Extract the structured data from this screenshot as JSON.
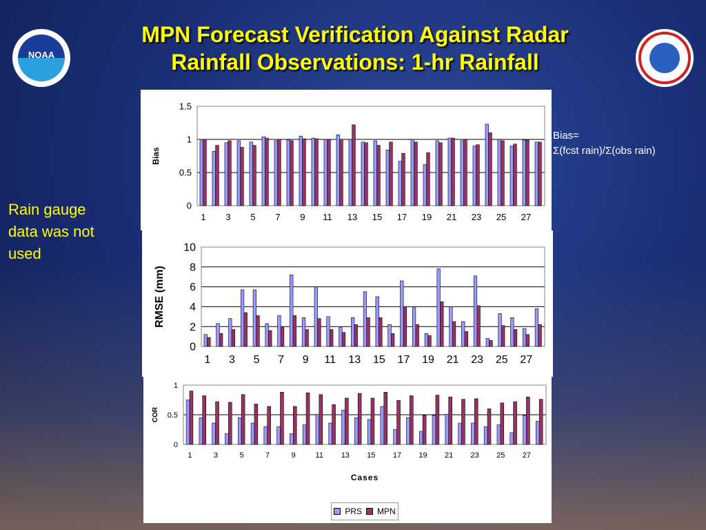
{
  "title_line1": "MPN Forecast Verification Against Radar",
  "title_line2": "Rainfall Observations: 1-hr Rainfall",
  "logo_left": "NOAA",
  "side_note": [
    "Rain gauge",
    "data was not",
    "used"
  ],
  "bias_note": [
    "Bias=",
    "Σ(fcst rain)/Σ(obs rain)"
  ],
  "colors": {
    "prs": "#9999ff",
    "mpn": "#993366",
    "title": "#ffff00"
  },
  "chart_data": [
    {
      "type": "bar",
      "ylabel": "Bias",
      "xlabel": "",
      "ylim": [
        0,
        1.5
      ],
      "yticks": [
        "0",
        "0.5",
        "1",
        "1.5"
      ],
      "x_tick_labels": [
        "1",
        "3",
        "5",
        "7",
        "9",
        "11",
        "13",
        "15",
        "17",
        "19",
        "21",
        "23",
        "25",
        "27"
      ],
      "categories": [
        1,
        2,
        3,
        4,
        5,
        6,
        7,
        8,
        9,
        10,
        11,
        12,
        13,
        14,
        15,
        16,
        17,
        18,
        19,
        20,
        21,
        22,
        23,
        24,
        25,
        26,
        27,
        28
      ],
      "series": [
        {
          "name": "PRS",
          "values": [
            0.98,
            0.82,
            0.95,
            0.98,
            0.96,
            1.04,
            0.98,
            0.99,
            1.05,
            1.02,
            1.0,
            1.07,
            1.0,
            0.96,
            0.98,
            0.84,
            0.67,
            1.0,
            0.62,
            0.98,
            1.02,
            0.98,
            0.9,
            1.23,
            1.0,
            0.9,
            0.99,
            0.96
          ]
        },
        {
          "name": "MPN",
          "values": [
            1.0,
            0.91,
            0.98,
            0.88,
            0.91,
            1.02,
            1.0,
            0.98,
            1.01,
            1.01,
            1.0,
            1.0,
            1.22,
            0.95,
            0.91,
            0.96,
            0.79,
            0.96,
            0.8,
            0.95,
            1.02,
            1.0,
            0.92,
            1.1,
            0.98,
            0.93,
            0.99,
            0.96
          ]
        }
      ]
    },
    {
      "type": "bar",
      "ylabel": "RMSE (mm)",
      "xlabel": "",
      "ylim": [
        0,
        10
      ],
      "yticks": [
        "0",
        "2",
        "4",
        "6",
        "8",
        "10"
      ],
      "x_tick_labels": [
        "1",
        "3",
        "5",
        "7",
        "9",
        "11",
        "13",
        "15",
        "17",
        "19",
        "21",
        "23",
        "25",
        "27"
      ],
      "categories": [
        1,
        2,
        3,
        4,
        5,
        6,
        7,
        8,
        9,
        10,
        11,
        12,
        13,
        14,
        15,
        16,
        17,
        18,
        19,
        20,
        21,
        22,
        23,
        24,
        25,
        26,
        27,
        28
      ],
      "series": [
        {
          "name": "PRS",
          "values": [
            1.2,
            2.3,
            2.8,
            5.7,
            5.7,
            2.3,
            3.1,
            7.2,
            2.9,
            6.0,
            3.0,
            1.9,
            2.9,
            5.5,
            5.0,
            2.2,
            6.6,
            3.9,
            1.3,
            7.8,
            4.0,
            2.5,
            7.1,
            0.8,
            3.3,
            2.9,
            1.8,
            3.8
          ]
        },
        {
          "name": "MPN",
          "values": [
            0.9,
            1.3,
            1.7,
            3.4,
            3.1,
            1.6,
            2.0,
            3.1,
            1.7,
            2.8,
            1.7,
            1.4,
            2.2,
            2.9,
            2.9,
            1.3,
            4.0,
            2.2,
            1.1,
            4.5,
            2.5,
            1.5,
            4.1,
            0.6,
            2.1,
            1.7,
            1.2,
            2.2
          ]
        }
      ]
    },
    {
      "type": "bar",
      "ylabel": "COR",
      "xlabel": "Cases",
      "ylim": [
        0,
        1
      ],
      "yticks": [
        "0",
        "0.5",
        "1"
      ],
      "x_tick_labels": [
        "1",
        "3",
        "5",
        "7",
        "9",
        "11",
        "13",
        "15",
        "17",
        "19",
        "21",
        "23",
        "25",
        "27"
      ],
      "categories": [
        1,
        2,
        3,
        4,
        5,
        6,
        7,
        8,
        9,
        10,
        11,
        12,
        13,
        14,
        15,
        16,
        17,
        18,
        19,
        20,
        21,
        22,
        23,
        24,
        25,
        26,
        27,
        28
      ],
      "series": [
        {
          "name": "PRS",
          "values": [
            0.75,
            0.45,
            0.36,
            0.18,
            0.45,
            0.36,
            0.3,
            0.3,
            0.18,
            0.33,
            0.51,
            0.36,
            0.58,
            0.45,
            0.42,
            0.64,
            0.25,
            0.45,
            0.22,
            0.49,
            0.51,
            0.36,
            0.36,
            0.3,
            0.33,
            0.2,
            0.49,
            0.39
          ]
        },
        {
          "name": "MPN",
          "values": [
            0.9,
            0.82,
            0.72,
            0.71,
            0.84,
            0.68,
            0.64,
            0.88,
            0.64,
            0.87,
            0.84,
            0.67,
            0.78,
            0.86,
            0.78,
            0.88,
            0.74,
            0.82,
            0.49,
            0.83,
            0.8,
            0.76,
            0.77,
            0.6,
            0.7,
            0.72,
            0.8,
            0.76
          ]
        }
      ]
    }
  ],
  "legend": [
    "PRS",
    "MPN"
  ]
}
